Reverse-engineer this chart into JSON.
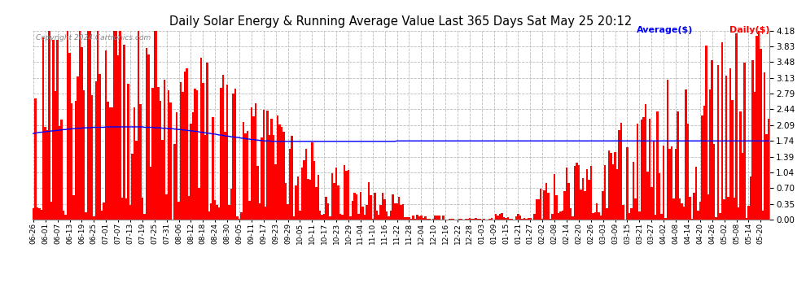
{
  "title": "Daily Solar Energy & Running Average Value Last 365 Days Sat May 25 20:12",
  "copyright": "Copyright 2024 Cartronics.com",
  "legend_avg": "Average($)",
  "legend_daily": "Daily($)",
  "bar_color": "#ff0000",
  "avg_color": "#0000ff",
  "bg_color": "#ffffff",
  "grid_color": "#bbbbbb",
  "title_color": "#000000",
  "copyright_color": "#888888",
  "ylim": [
    0.0,
    4.18
  ],
  "yticks": [
    0.0,
    0.35,
    0.7,
    1.04,
    1.39,
    1.74,
    2.09,
    2.44,
    2.79,
    3.13,
    3.48,
    3.83,
    4.18
  ],
  "x_labels": [
    "06-26",
    "06-01",
    "06-07",
    "06-13",
    "06-19",
    "06-25",
    "07-01",
    "07-07",
    "07-13",
    "07-19",
    "07-25",
    "07-31",
    "08-06",
    "08-12",
    "08-18",
    "08-24",
    "08-30",
    "09-05",
    "09-11",
    "09-17",
    "09-23",
    "09-29",
    "10-05",
    "10-11",
    "10-17",
    "10-23",
    "10-29",
    "11-04",
    "11-10",
    "11-16",
    "11-22",
    "11-28",
    "12-04",
    "12-10",
    "12-16",
    "12-22",
    "12-28",
    "01-03",
    "01-09",
    "01-15",
    "01-21",
    "01-27",
    "02-02",
    "02-08",
    "02-14",
    "02-20",
    "02-26",
    "03-03",
    "03-09",
    "03-15",
    "03-21",
    "03-27",
    "04-02",
    "04-08",
    "04-14",
    "04-20",
    "04-26",
    "05-02",
    "05-08",
    "05-14",
    "05-20"
  ],
  "n_bars": 365,
  "avg_line": [
    1.9,
    1.91,
    1.92,
    1.93,
    1.93,
    1.94,
    1.94,
    1.95,
    1.95,
    1.96,
    1.96,
    1.97,
    1.97,
    1.98,
    1.98,
    1.99,
    1.99,
    2.0,
    2.0,
    2.01,
    2.01,
    2.01,
    2.02,
    2.02,
    2.02,
    2.03,
    2.03,
    2.03,
    2.03,
    2.04,
    2.04,
    2.04,
    2.04,
    2.04,
    2.04,
    2.04,
    2.05,
    2.05,
    2.05,
    2.05,
    2.05,
    2.05,
    2.05,
    2.05,
    2.05,
    2.05,
    2.05,
    2.05,
    2.05,
    2.05,
    2.05,
    2.05,
    2.05,
    2.05,
    2.05,
    2.04,
    2.04,
    2.04,
    2.04,
    2.04,
    2.03,
    2.03,
    2.03,
    2.03,
    2.02,
    2.02,
    2.02,
    2.01,
    2.01,
    2.01,
    2.0,
    2.0,
    1.99,
    1.99,
    1.98,
    1.98,
    1.97,
    1.97,
    1.96,
    1.96,
    1.95,
    1.95,
    1.94,
    1.93,
    1.93,
    1.92,
    1.91,
    1.91,
    1.9,
    1.89,
    1.89,
    1.88,
    1.87,
    1.87,
    1.86,
    1.85,
    1.85,
    1.84,
    1.83,
    1.83,
    1.82,
    1.82,
    1.81,
    1.8,
    1.8,
    1.79,
    1.78,
    1.78,
    1.77,
    1.77,
    1.76,
    1.76,
    1.75,
    1.75,
    1.74,
    1.74,
    1.74,
    1.74,
    1.73,
    1.73,
    1.73,
    1.73,
    1.73,
    1.73,
    1.73,
    1.73,
    1.73,
    1.73,
    1.73,
    1.73,
    1.73,
    1.73,
    1.73,
    1.73,
    1.73,
    1.73,
    1.73,
    1.73,
    1.73,
    1.73,
    1.73,
    1.73,
    1.73,
    1.73,
    1.73,
    1.73,
    1.73,
    1.73,
    1.73,
    1.73,
    1.73,
    1.73,
    1.73,
    1.73,
    1.73,
    1.73,
    1.73,
    1.73,
    1.73,
    1.73,
    1.73,
    1.73,
    1.73,
    1.73,
    1.73,
    1.73,
    1.73,
    1.73,
    1.73,
    1.73,
    1.73,
    1.73,
    1.73,
    1.73,
    1.73,
    1.73,
    1.73,
    1.73,
    1.73,
    1.73,
    1.74,
    1.74,
    1.74,
    1.74,
    1.74,
    1.74,
    1.74,
    1.74,
    1.74,
    1.74,
    1.74,
    1.74,
    1.74,
    1.74,
    1.74,
    1.74,
    1.74,
    1.74,
    1.74,
    1.74,
    1.74,
    1.74,
    1.74,
    1.74,
    1.74,
    1.74,
    1.74,
    1.74,
    1.74,
    1.74,
    1.74,
    1.74,
    1.74,
    1.74,
    1.74,
    1.74,
    1.74,
    1.74,
    1.74,
    1.74,
    1.74,
    1.74,
    1.74,
    1.74,
    1.74,
    1.74,
    1.74,
    1.74,
    1.74,
    1.74,
    1.74,
    1.74,
    1.74,
    1.74,
    1.74,
    1.74,
    1.74,
    1.74,
    1.74,
    1.74,
    1.74,
    1.74,
    1.74,
    1.74,
    1.74,
    1.74,
    1.74,
    1.74,
    1.74,
    1.74,
    1.74,
    1.74,
    1.74,
    1.74,
    1.74,
    1.74,
    1.74,
    1.74,
    1.74,
    1.74,
    1.74,
    1.74,
    1.74,
    1.74,
    1.74,
    1.74,
    1.74,
    1.74,
    1.74,
    1.74,
    1.74,
    1.74,
    1.74,
    1.74,
    1.74,
    1.74,
    1.74,
    1.74,
    1.74,
    1.74,
    1.74,
    1.74,
    1.74,
    1.74,
    1.74,
    1.74,
    1.74,
    1.74,
    1.74,
    1.74,
    1.74,
    1.74,
    1.74,
    1.74,
    1.74,
    1.74,
    1.74,
    1.74,
    1.74,
    1.74,
    1.74,
    1.74,
    1.74,
    1.74,
    1.74,
    1.74,
    1.74,
    1.74,
    1.74,
    1.74,
    1.74,
    1.74,
    1.74,
    1.74,
    1.74,
    1.74,
    1.74,
    1.74,
    1.74,
    1.74,
    1.74,
    1.74,
    1.74,
    1.74,
    1.74,
    1.74,
    1.74,
    1.74,
    1.74,
    1.74,
    1.74,
    1.74,
    1.74,
    1.74,
    1.74,
    1.74,
    1.74,
    1.74,
    1.74,
    1.74,
    1.74,
    1.74,
    1.74,
    1.74,
    1.74,
    1.74,
    1.74,
    1.74,
    1.74,
    1.74,
    1.74,
    1.74,
    1.74,
    1.74,
    1.74,
    1.74,
    1.74,
    1.74,
    1.74,
    1.74,
    1.74,
    1.74,
    1.74,
    1.74,
    1.74
  ]
}
